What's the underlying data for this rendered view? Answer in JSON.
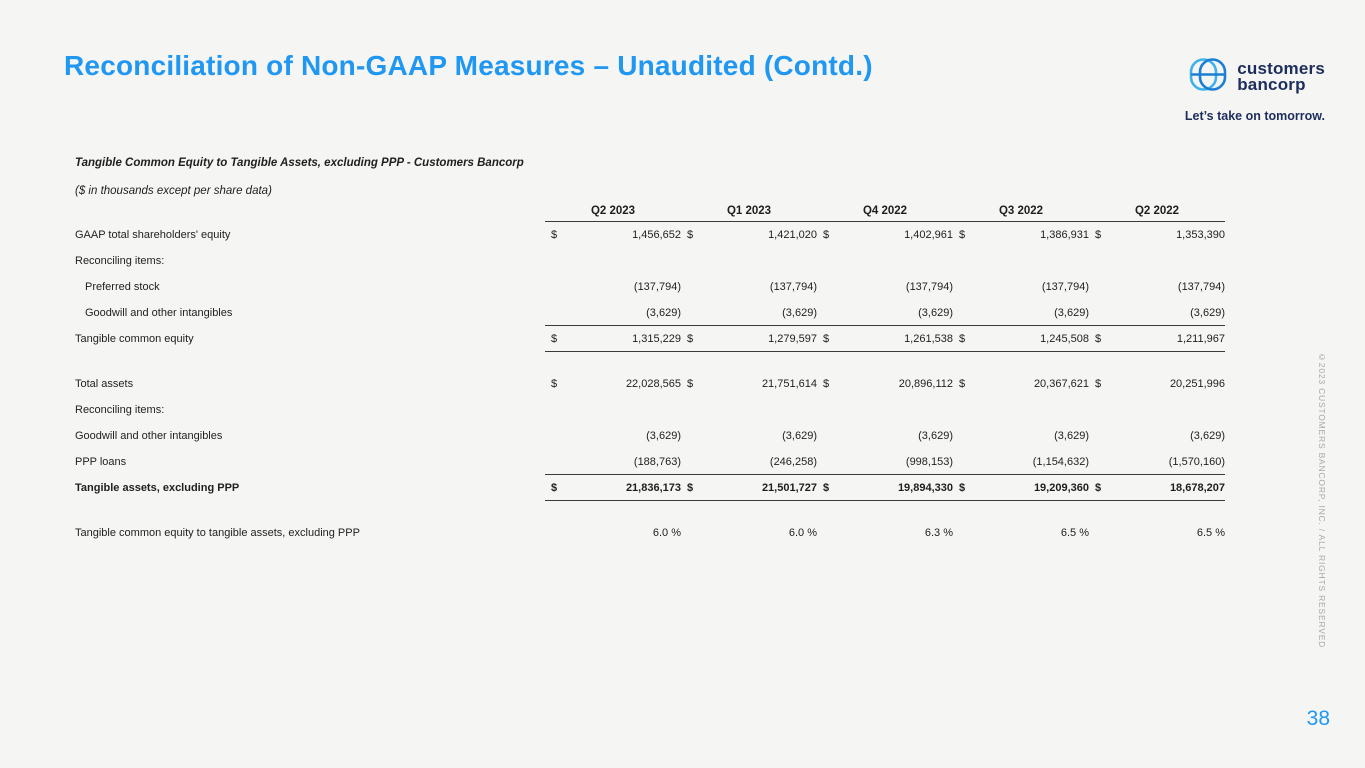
{
  "slide": {
    "title": "Reconciliation of Non-GAAP Measures – Unaudited (Contd.)",
    "page_number": "38",
    "copyright_vertical": "©2023 CUSTOMERS BANCORP, INC. / ALL RIGHTS RESERVED"
  },
  "logo": {
    "wordmark_line1": "customers",
    "wordmark_line2": "bancorp",
    "tagline": "Let’s take on tomorrow."
  },
  "table": {
    "title": "Tangible Common Equity to Tangible Assets, excluding PPP - Customers Bancorp",
    "note": "($ in thousands except per share data)",
    "columns": [
      "Q2 2023",
      "Q1 2023",
      "Q4 2022",
      "Q3 2022",
      "Q2 2022"
    ],
    "rows": [
      {
        "kind": "data",
        "label": "GAAP total shareholders' equity",
        "dollar": true,
        "values": [
          "1,456,652",
          "1,421,020",
          "1,402,961",
          "1,386,931",
          "1,353,390"
        ]
      },
      {
        "kind": "section",
        "label": "Reconciling items:"
      },
      {
        "kind": "data",
        "label": "Preferred stock",
        "indent": true,
        "values": [
          "(137,794)",
          "(137,794)",
          "(137,794)",
          "(137,794)",
          "(137,794)"
        ]
      },
      {
        "kind": "data",
        "label": "Goodwill and other intangibles",
        "indent": true,
        "border": true,
        "values": [
          "(3,629)",
          "(3,629)",
          "(3,629)",
          "(3,629)",
          "(3,629)"
        ]
      },
      {
        "kind": "data",
        "label": "Tangible common equity",
        "dollar": true,
        "border": true,
        "values": [
          "1,315,229",
          "1,279,597",
          "1,261,538",
          "1,245,508",
          "1,211,967"
        ]
      },
      {
        "kind": "spacer"
      },
      {
        "kind": "data",
        "label": "Total assets",
        "dollar": true,
        "values": [
          "22,028,565",
          "21,751,614",
          "20,896,112",
          "20,367,621",
          "20,251,996"
        ]
      },
      {
        "kind": "section",
        "label": "Reconciling items:"
      },
      {
        "kind": "data",
        "label": "Goodwill and other intangibles",
        "values": [
          "(3,629)",
          "(3,629)",
          "(3,629)",
          "(3,629)",
          "(3,629)"
        ]
      },
      {
        "kind": "data",
        "label": "PPP loans",
        "border": true,
        "values": [
          "(188,763)",
          "(246,258)",
          "(998,153)",
          "(1,154,632)",
          "(1,570,160)"
        ]
      },
      {
        "kind": "data",
        "label": "Tangible assets, excluding PPP",
        "dollar": true,
        "bold": true,
        "border": true,
        "values": [
          "21,836,173",
          "21,501,727",
          "19,894,330",
          "19,209,360",
          "18,678,207"
        ]
      },
      {
        "kind": "spacer"
      },
      {
        "kind": "data",
        "label": "Tangible common equity to tangible assets, excluding PPP",
        "values": [
          "6.0 %",
          "6.0 %",
          "6.3 %",
          "6.5 %",
          "6.5 %"
        ]
      }
    ]
  },
  "colors": {
    "accent_blue": "#2097f0",
    "navy": "#1d2d5c",
    "text": "#1f1f1f",
    "muted_gray": "#a8a8a8",
    "background": "#f5f5f4",
    "rule": "#3a3a3a",
    "logo_light_blue": "#3fb3e8",
    "logo_dark_blue": "#1d7fd4"
  }
}
